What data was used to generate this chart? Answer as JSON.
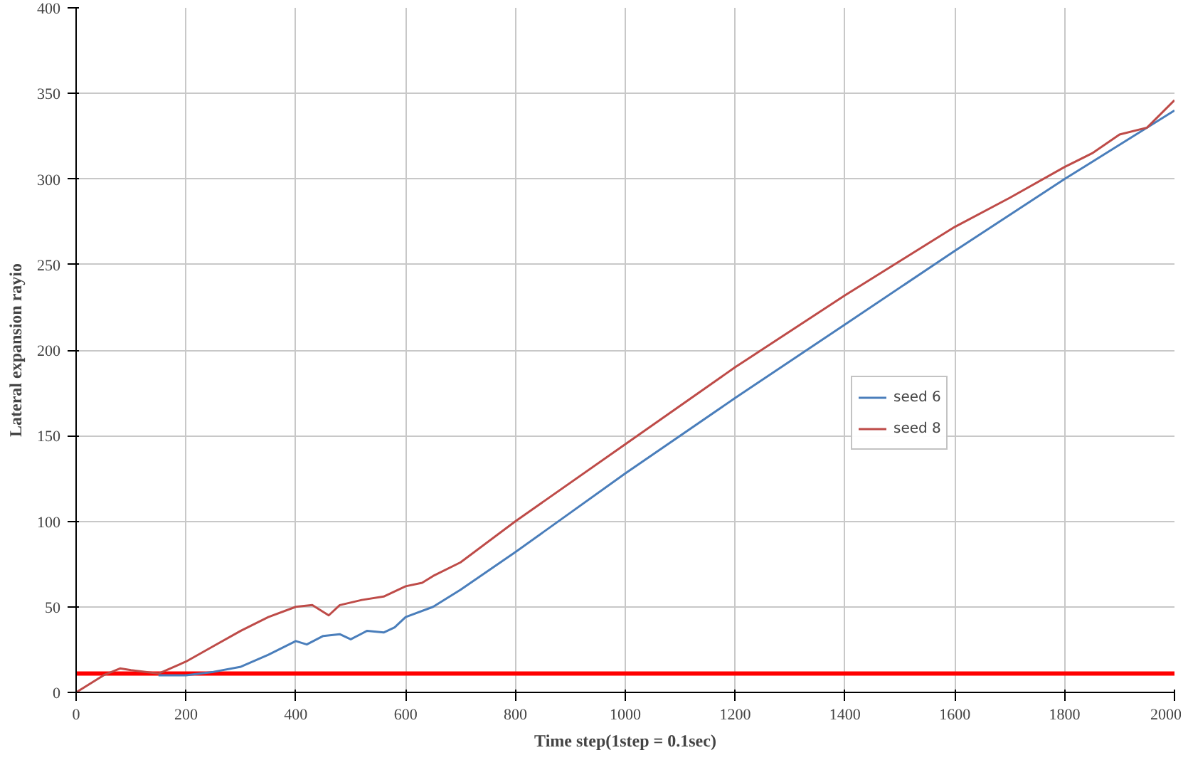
{
  "chart_data": {
    "type": "line",
    "xlabel": "Time step(1step = 0.1sec)",
    "ylabel": "Lateral expansion rayio",
    "xlim": [
      0,
      2000
    ],
    "xticks": [
      0,
      200,
      400,
      600,
      800,
      1000,
      1200,
      1400,
      1600,
      1800,
      2000
    ],
    "ylim": [
      0,
      400
    ],
    "yticks": [
      0,
      50,
      100,
      150,
      200,
      250,
      300,
      350,
      400
    ],
    "grid": true,
    "legend": "right",
    "series": [
      {
        "name": "seed 6",
        "color": "#4a7ebb",
        "x": [
          150,
          200,
          250,
          300,
          350,
          400,
          420,
          450,
          480,
          500,
          530,
          560,
          580,
          600,
          650,
          700,
          800,
          1000,
          1200,
          1400,
          1600,
          1800,
          2000
        ],
        "values": [
          10,
          10,
          12,
          15,
          22,
          30,
          28,
          33,
          34,
          31,
          36,
          35,
          38,
          44,
          50,
          60,
          82,
          128,
          172,
          215,
          258,
          300,
          340
        ]
      },
      {
        "name": "seed 8",
        "color": "#be4b48",
        "x": [
          0,
          50,
          80,
          100,
          150,
          200,
          250,
          300,
          350,
          400,
          430,
          460,
          480,
          520,
          560,
          600,
          630,
          650,
          700,
          800,
          1000,
          1200,
          1400,
          1600,
          1700,
          1800,
          1850,
          1900,
          1950,
          2000
        ],
        "values": [
          0,
          10,
          14,
          13,
          11,
          18,
          27,
          36,
          44,
          50,
          51,
          45,
          51,
          54,
          56,
          62,
          64,
          68,
          76,
          100,
          145,
          190,
          232,
          272,
          289,
          307,
          315,
          326,
          330,
          346
        ]
      }
    ],
    "ref_lines": [
      {
        "axis": "y",
        "value": 11,
        "color": "#ff0000"
      }
    ]
  }
}
